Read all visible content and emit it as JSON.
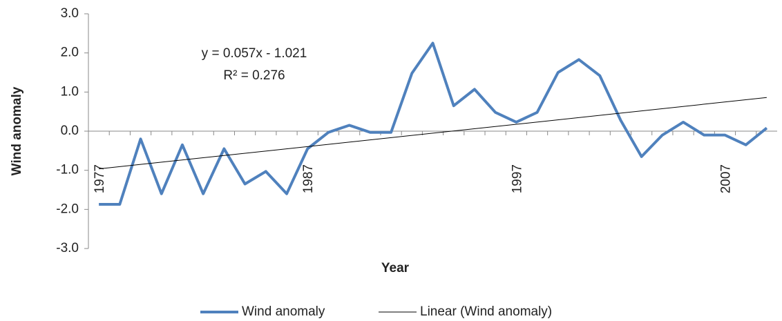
{
  "chart_data": {
    "type": "line",
    "x_label": "Year",
    "y_label": "Wind anomaly",
    "categories": [
      "1977",
      null,
      null,
      null,
      null,
      null,
      null,
      null,
      null,
      null,
      "1987",
      null,
      null,
      null,
      null,
      null,
      null,
      null,
      null,
      null,
      "1997",
      null,
      null,
      null,
      null,
      null,
      null,
      null,
      null,
      null,
      "2007",
      null,
      null
    ],
    "series": [
      {
        "name": "Wind anomaly",
        "color": "#4f81bd",
        "values": [
          -1.87,
          -1.87,
          -0.2,
          -1.6,
          -0.35,
          -1.6,
          -0.45,
          -1.35,
          -1.03,
          -1.6,
          -0.45,
          -0.03,
          0.15,
          -0.03,
          -0.03,
          1.48,
          2.25,
          0.65,
          1.07,
          0.48,
          0.23,
          0.48,
          1.5,
          1.83,
          1.42,
          0.28,
          -0.65,
          -0.1,
          0.23,
          -0.1,
          -0.1,
          -0.35,
          0.08
        ]
      }
    ],
    "trendline": {
      "name": "Linear (Wind anomaly)",
      "color": "#000000",
      "slope": 0.057,
      "intercept": -1.021,
      "equation": "y = 0.057x - 1.021",
      "r_squared": "R² = 0.276"
    },
    "ylim": [
      -3,
      3
    ],
    "yticks": [
      {
        "value": -3,
        "label": "-3.0"
      },
      {
        "value": -2,
        "label": "-2.0"
      },
      {
        "value": -1,
        "label": "-1.0"
      },
      {
        "value": 0,
        "label": "0.0"
      },
      {
        "value": 1,
        "label": "1.0"
      },
      {
        "value": 2,
        "label": "2.0"
      },
      {
        "value": 3,
        "label": "3.0"
      }
    ],
    "grid": false,
    "legend": "bottom"
  }
}
